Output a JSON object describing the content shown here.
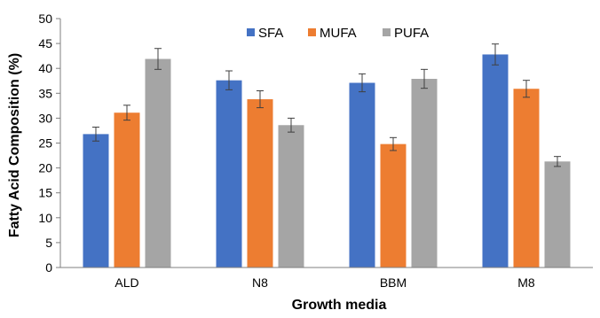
{
  "chart_data": {
    "type": "bar",
    "categories": [
      "ALD",
      "N8",
      "BBM",
      "M8"
    ],
    "series": [
      {
        "name": "SFA",
        "color": "#4472C4",
        "values": [
          26.8,
          37.6,
          37.1,
          42.8
        ],
        "errors": [
          1.4,
          1.9,
          1.8,
          2.1
        ]
      },
      {
        "name": "MUFA",
        "color": "#ED7D31",
        "values": [
          31.1,
          33.8,
          24.8,
          35.9
        ],
        "errors": [
          1.5,
          1.7,
          1.3,
          1.7
        ]
      },
      {
        "name": "PUFA",
        "color": "#A5A5A5",
        "values": [
          41.9,
          28.6,
          37.9,
          21.3
        ],
        "errors": [
          2.1,
          1.4,
          1.9,
          1.0
        ]
      }
    ],
    "xlabel": "Growth media",
    "ylabel": "Fatty Acid Composition (%)",
    "ylim": [
      0,
      50
    ],
    "yticks": [
      0,
      5,
      10,
      15,
      20,
      25,
      30,
      35,
      40,
      45,
      50
    ],
    "grid": false,
    "legend_position": "top-center"
  }
}
